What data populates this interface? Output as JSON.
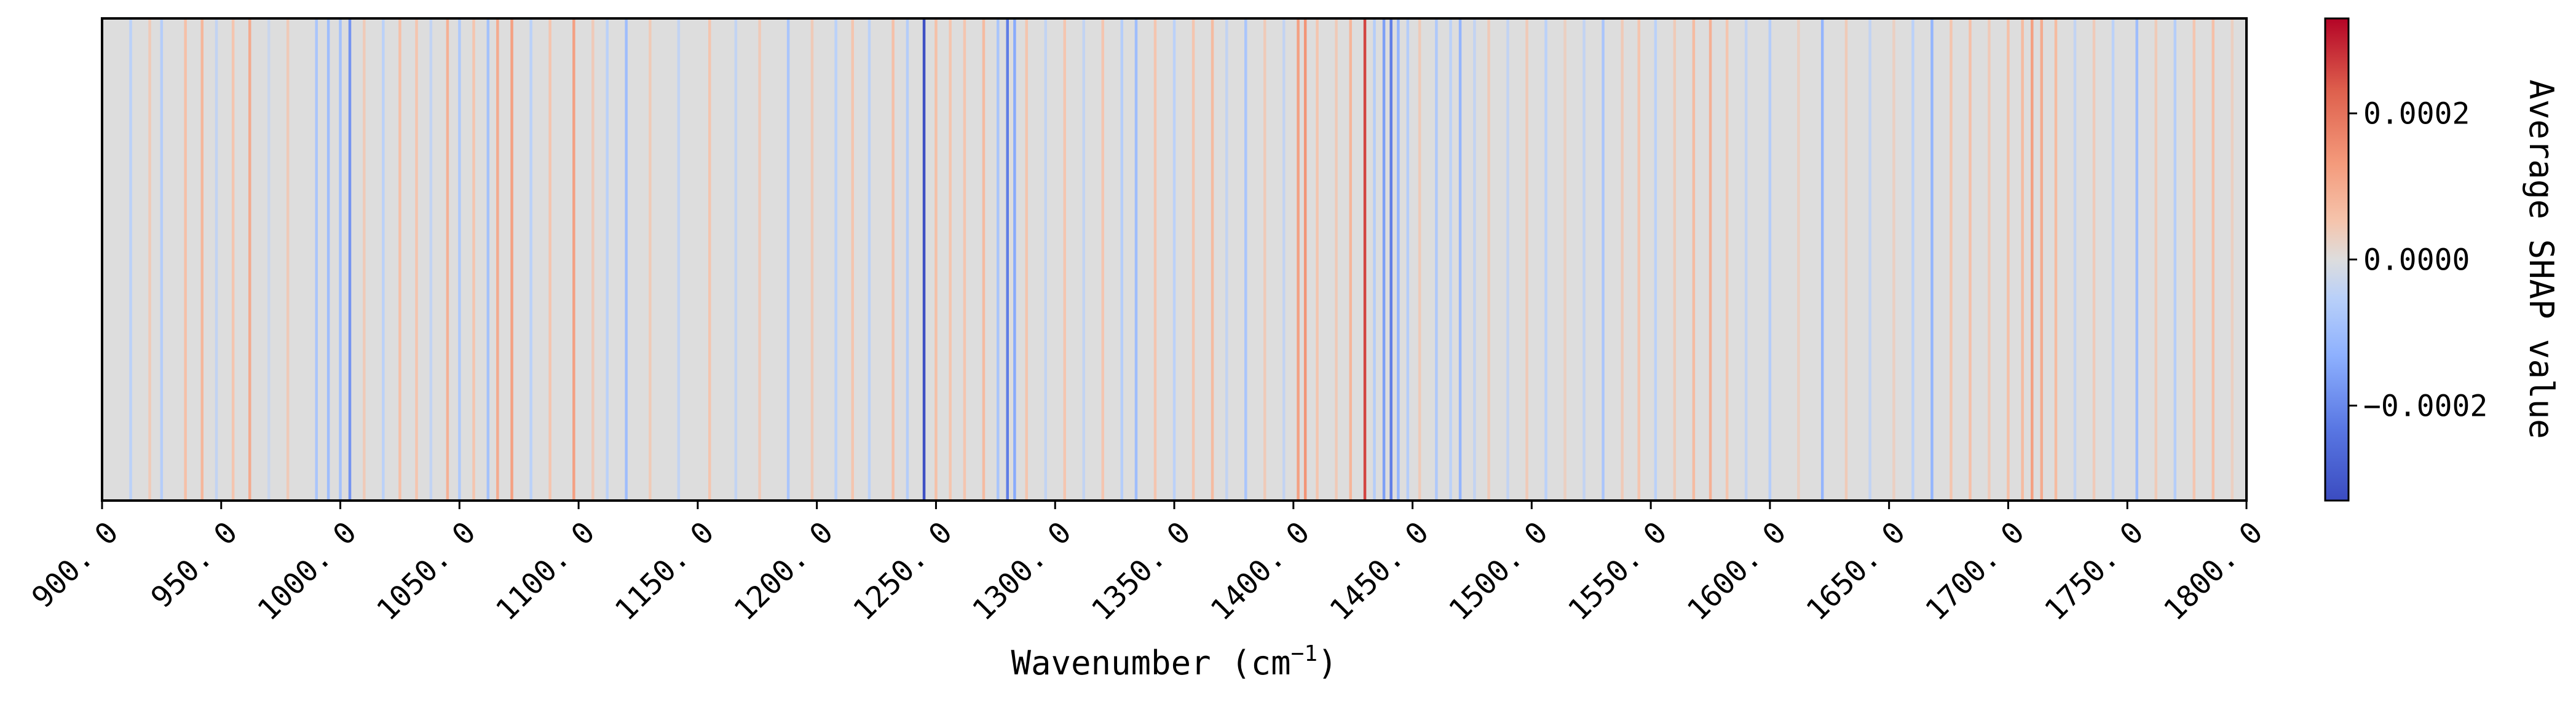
{
  "chart_data": {
    "type": "heatmap",
    "title": "",
    "xlabel": "Wavenumber (cm",
    "xlabel_sup": "−1",
    "xlabel_close": ")",
    "ylabel": "",
    "xlim": [
      900.0,
      1800.0
    ],
    "x_ticks": [
      900.0,
      950.0,
      1000.0,
      1050.0,
      1100.0,
      1150.0,
      1200.0,
      1250.0,
      1300.0,
      1350.0,
      1400.0,
      1450.0,
      1500.0,
      1550.0,
      1600.0,
      1650.0,
      1700.0,
      1750.0,
      1800.0
    ],
    "x_tick_labels": [
      "900. 0",
      "950. 0",
      "1000. 0",
      "1050. 0",
      "1100. 0",
      "1150. 0",
      "1200. 0",
      "1250. 0",
      "1300. 0",
      "1350. 0",
      "1400. 0",
      "1450. 0",
      "1500. 0",
      "1550. 0",
      "1600. 0",
      "1650. 0",
      "1700. 0",
      "1750. 0",
      "1800. 0"
    ],
    "colormap": "coolwarm",
    "colorbar": {
      "label": "Average SHAP value",
      "range": [
        -0.00033,
        0.00033
      ],
      "ticks": [
        -0.0002,
        0.0,
        0.0002
      ],
      "tick_labels": [
        "−0.0002",
        "0.0000",
        "0.0002"
      ]
    },
    "bands": [
      {
        "x": 912,
        "v": -5e-05
      },
      {
        "x": 920,
        "v": 4e-05
      },
      {
        "x": 925,
        "v": -6e-05
      },
      {
        "x": 935,
        "v": 6e-05
      },
      {
        "x": 942,
        "v": 8e-05
      },
      {
        "x": 948,
        "v": -4e-05
      },
      {
        "x": 955,
        "v": 5e-05
      },
      {
        "x": 962,
        "v": 0.0001
      },
      {
        "x": 970,
        "v": -3e-05
      },
      {
        "x": 978,
        "v": 4e-05
      },
      {
        "x": 990,
        "v": -8e-05
      },
      {
        "x": 995,
        "v": -0.0001
      },
      {
        "x": 1000,
        "v": -9e-05
      },
      {
        "x": 1004,
        "v": -0.00018
      },
      {
        "x": 1010,
        "v": 4e-05
      },
      {
        "x": 1018,
        "v": -5e-05
      },
      {
        "x": 1025,
        "v": 6e-05
      },
      {
        "x": 1032,
        "v": 5e-05
      },
      {
        "x": 1038,
        "v": -4e-05
      },
      {
        "x": 1045,
        "v": 9e-05
      },
      {
        "x": 1050,
        "v": -7e-05
      },
      {
        "x": 1056,
        "v": 5e-05
      },
      {
        "x": 1062,
        "v": -9e-05
      },
      {
        "x": 1066,
        "v": 0.0001
      },
      {
        "x": 1072,
        "v": 0.00012
      },
      {
        "x": 1080,
        "v": -5e-05
      },
      {
        "x": 1088,
        "v": 5e-05
      },
      {
        "x": 1098,
        "v": 0.00012
      },
      {
        "x": 1106,
        "v": 4e-05
      },
      {
        "x": 1112,
        "v": -5e-05
      },
      {
        "x": 1120,
        "v": -0.0001
      },
      {
        "x": 1130,
        "v": 4e-05
      },
      {
        "x": 1142,
        "v": -4e-05
      },
      {
        "x": 1155,
        "v": 5e-05
      },
      {
        "x": 1166,
        "v": -4e-05
      },
      {
        "x": 1176,
        "v": 4e-05
      },
      {
        "x": 1188,
        "v": -8e-05
      },
      {
        "x": 1198,
        "v": 4e-05
      },
      {
        "x": 1208,
        "v": -5e-05
      },
      {
        "x": 1215,
        "v": 5e-05
      },
      {
        "x": 1222,
        "v": -5e-05
      },
      {
        "x": 1232,
        "v": 6e-05
      },
      {
        "x": 1238,
        "v": -6e-05
      },
      {
        "x": 1245,
        "v": -0.00032
      },
      {
        "x": 1250,
        "v": 6e-05
      },
      {
        "x": 1256,
        "v": 5e-05
      },
      {
        "x": 1262,
        "v": 5e-05
      },
      {
        "x": 1270,
        "v": 7e-05
      },
      {
        "x": 1276,
        "v": -8e-05
      },
      {
        "x": 1280,
        "v": -0.00022
      },
      {
        "x": 1283,
        "v": -0.00014
      },
      {
        "x": 1288,
        "v": 5e-05
      },
      {
        "x": 1296,
        "v": -4e-05
      },
      {
        "x": 1304,
        "v": 5e-05
      },
      {
        "x": 1312,
        "v": -4e-05
      },
      {
        "x": 1320,
        "v": 5e-05
      },
      {
        "x": 1328,
        "v": -6e-05
      },
      {
        "x": 1334,
        "v": -0.0001
      },
      {
        "x": 1342,
        "v": 5e-05
      },
      {
        "x": 1350,
        "v": -5e-05
      },
      {
        "x": 1358,
        "v": 5e-05
      },
      {
        "x": 1366,
        "v": 7e-05
      },
      {
        "x": 1372,
        "v": -4e-05
      },
      {
        "x": 1380,
        "v": -8e-05
      },
      {
        "x": 1388,
        "v": 4e-05
      },
      {
        "x": 1396,
        "v": -4e-05
      },
      {
        "x": 1402,
        "v": 0.00012
      },
      {
        "x": 1405,
        "v": 0.00014
      },
      {
        "x": 1410,
        "v": 5e-05
      },
      {
        "x": 1418,
        "v": 4e-05
      },
      {
        "x": 1424,
        "v": 8e-05
      },
      {
        "x": 1430,
        "v": 0.00026
      },
      {
        "x": 1434,
        "v": -6e-05
      },
      {
        "x": 1438,
        "v": -0.00016
      },
      {
        "x": 1441,
        "v": -0.00022
      },
      {
        "x": 1444,
        "v": -0.00012
      },
      {
        "x": 1448,
        "v": -6e-05
      },
      {
        "x": 1453,
        "v": 4e-05
      },
      {
        "x": 1460,
        "v": -7e-05
      },
      {
        "x": 1466,
        "v": -5e-05
      },
      {
        "x": 1470,
        "v": -0.00012
      },
      {
        "x": 1476,
        "v": -4e-05
      },
      {
        "x": 1482,
        "v": 4e-05
      },
      {
        "x": 1490,
        "v": -4e-05
      },
      {
        "x": 1498,
        "v": 4e-05
      },
      {
        "x": 1506,
        "v": -5e-05
      },
      {
        "x": 1514,
        "v": 3e-05
      },
      {
        "x": 1522,
        "v": -4e-05
      },
      {
        "x": 1530,
        "v": -8e-05
      },
      {
        "x": 1538,
        "v": 4e-05
      },
      {
        "x": 1545,
        "v": 5e-05
      },
      {
        "x": 1552,
        "v": -5e-05
      },
      {
        "x": 1560,
        "v": 4e-05
      },
      {
        "x": 1568,
        "v": 7e-05
      },
      {
        "x": 1575,
        "v": 9e-05
      },
      {
        "x": 1582,
        "v": 5e-05
      },
      {
        "x": 1590,
        "v": -4e-05
      },
      {
        "x": 1600,
        "v": -6e-05
      },
      {
        "x": 1612,
        "v": 3e-05
      },
      {
        "x": 1622,
        "v": -0.00012
      },
      {
        "x": 1632,
        "v": 4e-05
      },
      {
        "x": 1642,
        "v": -4e-05
      },
      {
        "x": 1652,
        "v": 3e-05
      },
      {
        "x": 1660,
        "v": -5e-05
      },
      {
        "x": 1668,
        "v": -0.00012
      },
      {
        "x": 1676,
        "v": 5e-05
      },
      {
        "x": 1684,
        "v": 6e-05
      },
      {
        "x": 1692,
        "v": 4e-05
      },
      {
        "x": 1700,
        "v": 6e-05
      },
      {
        "x": 1706,
        "v": 7e-05
      },
      {
        "x": 1710,
        "v": 0.00012
      },
      {
        "x": 1714,
        "v": 0.0001
      },
      {
        "x": 1720,
        "v": 7e-05
      },
      {
        "x": 1728,
        "v": -4e-05
      },
      {
        "x": 1736,
        "v": 4e-05
      },
      {
        "x": 1744,
        "v": -5e-05
      },
      {
        "x": 1754,
        "v": -0.0001
      },
      {
        "x": 1762,
        "v": 4e-05
      },
      {
        "x": 1770,
        "v": -6e-05
      },
      {
        "x": 1778,
        "v": 5e-05
      },
      {
        "x": 1786,
        "v": 6e-05
      },
      {
        "x": 1794,
        "v": 3e-05
      }
    ]
  }
}
